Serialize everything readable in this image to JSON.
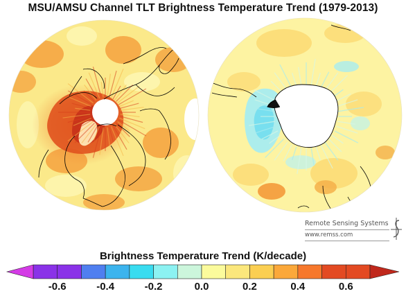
{
  "title": "MSU/AMSU Channel TLT Brightness Temperature Trend (1979-2013)",
  "credit": {
    "name": "Remote Sensing Systems",
    "url": "www.remss.com"
  },
  "colorbar": {
    "title": "Brightness Temperature Trend (K/decade)",
    "min": -0.7,
    "max": 0.7,
    "colors": [
      "#8a32e8",
      "#4f7ff0",
      "#3cb4ee",
      "#39dcf0",
      "#8cf2f2",
      "#ccf6dc",
      "#fbfb9c",
      "#fbe77c",
      "#fbcf52",
      "#fba83a",
      "#f7782c",
      "#e34a22"
    ],
    "under_color": "#d43be6",
    "over_color": "#c0281c",
    "ticks": [
      {
        "value": -0.6,
        "label": "-0.6"
      },
      {
        "value": -0.4,
        "label": "-0.4"
      },
      {
        "value": -0.2,
        "label": "-0.2"
      },
      {
        "value": 0.0,
        "label": "0.0"
      },
      {
        "value": 0.2,
        "label": "0.2"
      },
      {
        "value": 0.4,
        "label": "0.4"
      },
      {
        "value": 0.6,
        "label": "0.6"
      }
    ]
  },
  "maps": [
    {
      "hemisphere": "north",
      "base_color": "#fbe98a",
      "pole_color": "#ffffff",
      "warm_color": "#f4a23e",
      "hot_color": "#e0521e"
    },
    {
      "hemisphere": "south",
      "base_color": "#fdf3a2",
      "pole_color": "#ffffff",
      "cool_color": "#a8ecf0"
    }
  ]
}
